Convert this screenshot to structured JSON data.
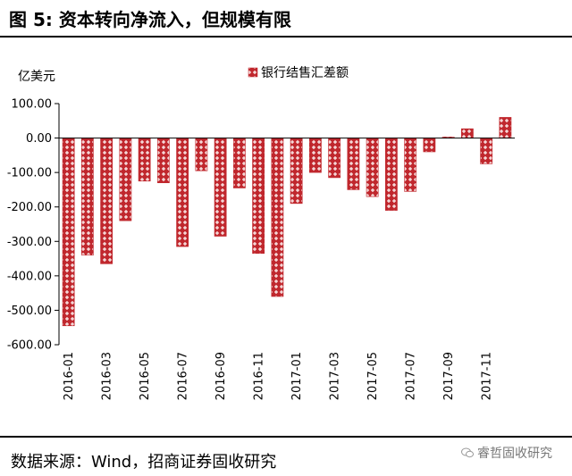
{
  "figure": {
    "title": "图 5:  资本转向净流入，但规模有限",
    "source": "数据来源：Wind，招商证券固收研究",
    "watermark": "睿哲固收研究"
  },
  "colors": {
    "bar_fill": "#c0272d",
    "bar_pattern_light": "#f4d6d6",
    "axis": "#000000"
  },
  "chart_data": {
    "type": "bar",
    "ylabel": "亿美元",
    "ylim": [
      -600,
      100
    ],
    "yticks": [
      100,
      0,
      -100,
      -200,
      -300,
      -400,
      -500,
      -600
    ],
    "ytick_labels": [
      "100.00",
      "0.00",
      "-100.00",
      "-200.00",
      "-300.00",
      "-400.00",
      "-500.00",
      "-600.00"
    ],
    "grid": false,
    "legend_position": "top-center",
    "categories": [
      "2016-01",
      "2016-02",
      "2016-03",
      "2016-04",
      "2016-05",
      "2016-06",
      "2016-07",
      "2016-08",
      "2016-09",
      "2016-10",
      "2016-11",
      "2016-12",
      "2017-01",
      "2017-02",
      "2017-03",
      "2017-04",
      "2017-05",
      "2017-06",
      "2017-07",
      "2017-08",
      "2017-09",
      "2017-10",
      "2017-11",
      "2017-12"
    ],
    "xtick_labels": [
      "2016-01",
      "",
      "2016-03",
      "",
      "2016-05",
      "",
      "2016-07",
      "",
      "2016-09",
      "",
      "2016-11",
      "",
      "2017-01",
      "",
      "2017-03",
      "",
      "2017-05",
      "",
      "2017-07",
      "",
      "2017-09",
      "",
      "2017-11",
      ""
    ],
    "series": [
      {
        "name": "银行结售汇差额",
        "values": [
          -545,
          -340,
          -365,
          -240,
          -125,
          -130,
          -315,
          -95,
          -285,
          -145,
          -335,
          -460,
          -190,
          -100,
          -115,
          -150,
          -170,
          -210,
          -155,
          -40,
          3,
          27,
          -75,
          60
        ]
      }
    ]
  }
}
